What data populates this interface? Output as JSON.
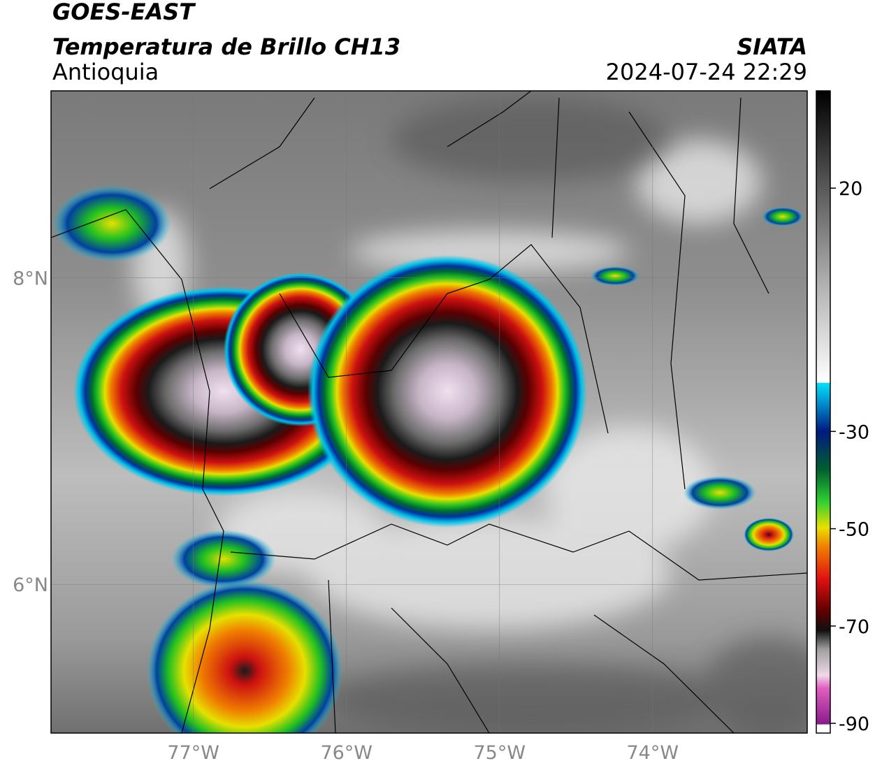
{
  "header": {
    "title": "GOES-EAST",
    "subtitle": "Temperatura de Brillo CH13",
    "region": "Antioquia",
    "source": "SIATA",
    "datetime": "2024-07-24 22:29"
  },
  "map": {
    "xlim": [
      -77.93,
      -72.99
    ],
    "ylim": [
      5.03,
      9.22
    ],
    "xticks": [
      {
        "value": -77,
        "label": "77°W"
      },
      {
        "value": -76,
        "label": "76°W"
      },
      {
        "value": -75,
        "label": "75°W"
      },
      {
        "value": -74,
        "label": "74°W"
      }
    ],
    "yticks": [
      {
        "value": 6,
        "label": "6°N"
      },
      {
        "value": 8,
        "label": "8°N"
      }
    ],
    "grid": true
  },
  "colorbar": {
    "lim": [
      -92,
      40
    ],
    "ticks": [
      20,
      -30,
      -50,
      -70,
      -90
    ]
  }
}
